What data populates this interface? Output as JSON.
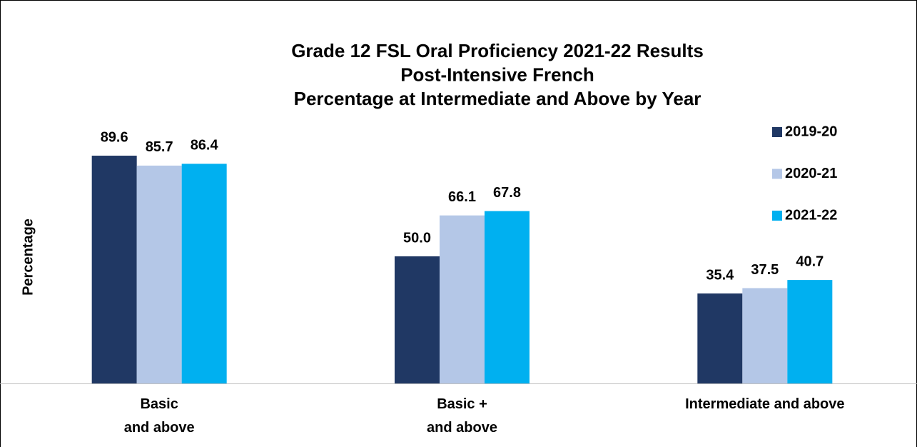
{
  "chart_data": {
    "type": "bar",
    "title": [
      "Grade 12 FSL Oral Proficiency 2021-22 Results",
      "Post-Intensive French",
      "Percentage at Intermediate and Above by Year"
    ],
    "y_label": "Percentage",
    "categories": [
      "Basic\nand above",
      "Basic +\nand above",
      "Intermediate and above"
    ],
    "series": [
      {
        "name": "2019-20",
        "color": "#203864",
        "values": [
          89.6,
          50.0,
          35.4
        ],
        "value_labels": [
          "89.6",
          "50.0",
          "35.4"
        ]
      },
      {
        "name": "2020-21",
        "color": "#b4c7e7",
        "values": [
          85.7,
          66.1,
          37.5
        ],
        "value_labels": [
          "85.7",
          "66.1",
          "37.5"
        ]
      },
      {
        "name": "2021-22",
        "color": "#00b0f0",
        "values": [
          86.4,
          67.8,
          40.7
        ],
        "value_labels": [
          "86.4",
          "67.8",
          "40.7"
        ]
      }
    ],
    "ylim": [
      0,
      100
    ],
    "legend": "right"
  }
}
